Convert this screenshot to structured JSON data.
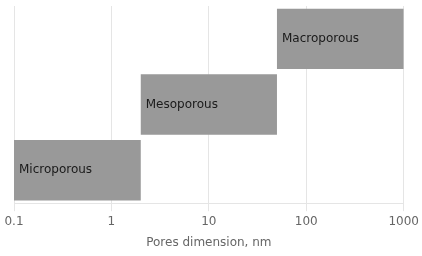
{
  "chart_data": {
    "type": "bar",
    "orientation": "horizontal",
    "categories": [
      "Microporous",
      "Mesoporous",
      "Macroporous"
    ],
    "values": [
      [
        0.1,
        2.0
      ],
      [
        2.0,
        50.0
      ],
      [
        50.0,
        1000.0
      ]
    ],
    "color": "#999999",
    "xlabel": "Pores dimension, nm",
    "log": "x",
    "xlim": [
      0.1,
      1000
    ],
    "xticks": [
      0.1,
      1,
      10,
      100,
      1000
    ],
    "grid": true,
    "tick_labels": "x"
  }
}
